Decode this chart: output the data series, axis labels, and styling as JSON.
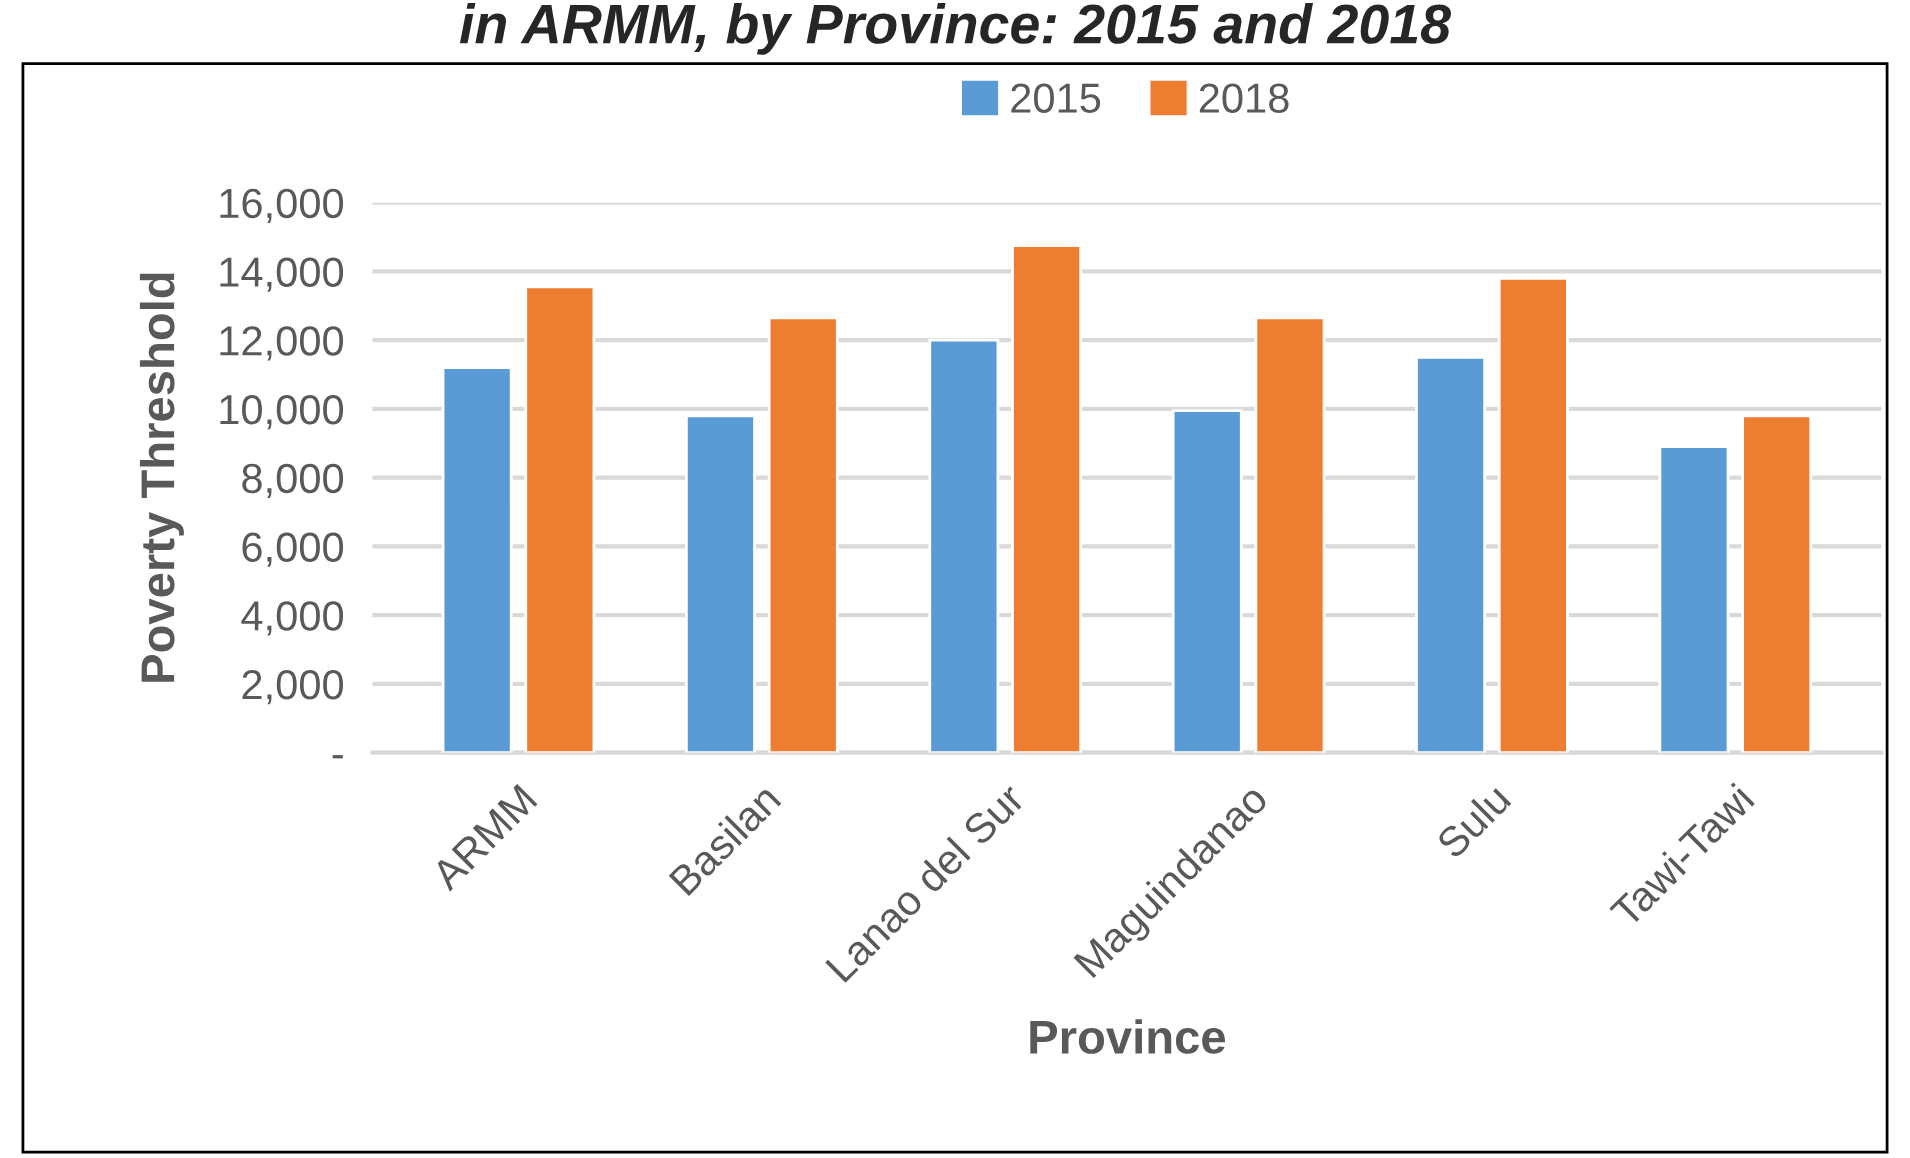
{
  "chart_data": {
    "type": "bar",
    "title": "in ARMM, by Province: 2015 and 2018",
    "xlabel": "Province",
    "ylabel": "Poverty Threshold",
    "categories": [
      "ARMM",
      "Basilan",
      "Lanao del Sur",
      "Maguindanao",
      "Sulu",
      "Tawi-Tawi"
    ],
    "series": [
      {
        "name": "2015",
        "color": "#5b9bd5",
        "values": [
          11200,
          9800,
          12000,
          9950,
          11500,
          8900
        ]
      },
      {
        "name": "2018",
        "color": "#ed7d31",
        "values": [
          13550,
          12650,
          14750,
          12650,
          13800,
          9800
        ]
      }
    ],
    "ylim": [
      0,
      16000
    ],
    "yticks": [
      {
        "value": 0,
        "label": "-"
      },
      {
        "value": 2000,
        "label": "2,000"
      },
      {
        "value": 4000,
        "label": "4,000"
      },
      {
        "value": 6000,
        "label": "6,000"
      },
      {
        "value": 8000,
        "label": "8,000"
      },
      {
        "value": 10000,
        "label": "10,000"
      },
      {
        "value": 12000,
        "label": "12,000"
      },
      {
        "value": 14000,
        "label": "14,000"
      },
      {
        "value": 16000,
        "label": "16,000"
      }
    ],
    "grid": "y",
    "legend": "top"
  }
}
